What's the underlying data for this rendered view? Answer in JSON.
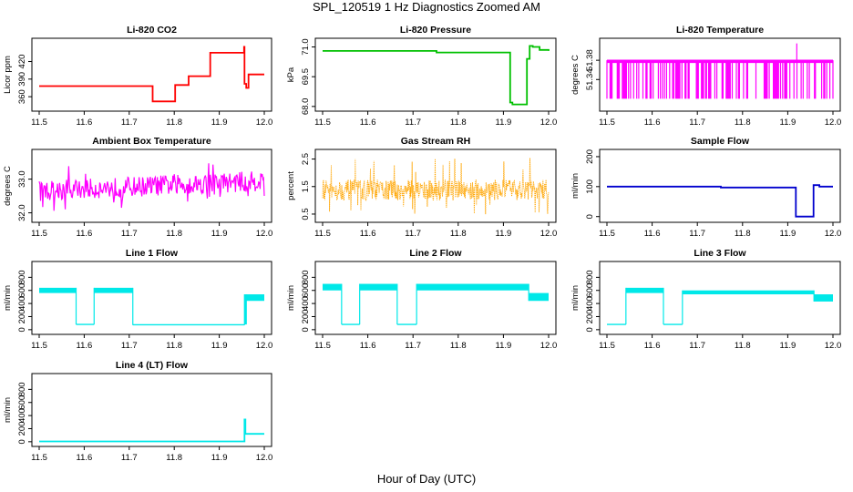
{
  "figure": {
    "title": "SPL_120519  1 Hz Diagnostics Zoomed AM",
    "xlabel": "Hour of Day (UTC)"
  },
  "chart_data": [
    {
      "type": "line",
      "title": "Li-820 CO2",
      "ylabel": "Licor ppm",
      "color": "#ff0000",
      "xlim": [
        11.5,
        12.0
      ],
      "ylim": [
        340,
        455
      ],
      "xticks": [
        11.5,
        11.6,
        11.7,
        11.8,
        11.9,
        12.0
      ],
      "yticks": [
        360,
        390,
        420
      ],
      "ytick_labels": [
        "360",
        "390",
        "420"
      ],
      "points": [
        [
          11.5,
          378
        ],
        [
          11.75,
          378
        ],
        [
          11.752,
          352
        ],
        [
          11.8,
          352
        ],
        [
          11.802,
          380
        ],
        [
          11.83,
          380
        ],
        [
          11.832,
          395
        ],
        [
          11.878,
          395
        ],
        [
          11.88,
          435
        ],
        [
          11.95,
          435
        ],
        [
          11.955,
          445
        ],
        [
          11.956,
          382
        ],
        [
          11.96,
          375
        ],
        [
          11.965,
          398
        ],
        [
          12.0,
          398
        ]
      ]
    },
    {
      "type": "line",
      "title": "Li-820 Pressure",
      "ylabel": "kPa",
      "color": "#00c000",
      "xlim": [
        11.5,
        12.0
      ],
      "ylim": [
        67.9,
        71.3
      ],
      "xticks": [
        11.5,
        11.6,
        11.7,
        11.8,
        11.9,
        12.0
      ],
      "yticks": [
        68.0,
        69.5,
        71.0
      ],
      "ytick_labels": [
        "68.0",
        "69.5",
        "71.0"
      ],
      "points": [
        [
          11.5,
          70.8
        ],
        [
          11.75,
          70.8
        ],
        [
          11.752,
          70.72
        ],
        [
          11.91,
          70.72
        ],
        [
          11.915,
          68.2
        ],
        [
          11.92,
          68.1
        ],
        [
          11.95,
          68.1
        ],
        [
          11.952,
          70.4
        ],
        [
          11.958,
          71.05
        ],
        [
          11.965,
          71.0
        ],
        [
          11.98,
          70.85
        ],
        [
          12.0,
          70.8
        ]
      ]
    },
    {
      "type": "line",
      "title": "Li-820 Temperature",
      "ylabel": "degrees C",
      "color": "#ff00ff",
      "xlim": [
        11.5,
        12.0
      ],
      "ylim": [
        51.28,
        51.42
      ],
      "xticks": [
        11.5,
        11.6,
        11.7,
        11.8,
        11.9,
        12.0
      ],
      "yticks": [
        51.34,
        51.38
      ],
      "ytick_labels": [
        "51.34",
        "51.38"
      ],
      "levels": [
        51.3,
        51.38
      ],
      "spike": [
        11.92,
        51.415
      ]
    },
    {
      "type": "line",
      "title": "Ambient Box Temperature",
      "ylabel": "degrees C",
      "color": "#ff00ff",
      "xlim": [
        11.5,
        12.0
      ],
      "ylim": [
        31.8,
        33.8
      ],
      "xticks": [
        11.5,
        11.6,
        11.7,
        11.8,
        11.9,
        12.0
      ],
      "yticks": [
        32.0,
        33.0
      ],
      "ytick_labels": [
        "32.0",
        "33.0"
      ],
      "trend": [
        [
          11.5,
          32.35,
          32.95
        ],
        [
          12.0,
          32.65,
          33.25
        ]
      ]
    },
    {
      "type": "line",
      "title": "Gas Stream RH",
      "ylabel": "percent",
      "color": "#ffa500",
      "xlim": [
        11.5,
        12.0
      ],
      "ylim": [
        0.3,
        2.75
      ],
      "xticks": [
        11.5,
        11.6,
        11.7,
        11.8,
        11.9,
        12.0
      ],
      "yticks": [
        0.5,
        1.5,
        2.5
      ],
      "ytick_labels": [
        "0.5",
        "1.5",
        "2.5"
      ],
      "band": [
        1.0,
        1.75
      ]
    },
    {
      "type": "line",
      "title": "Sample Flow",
      "ylabel": "ml/min",
      "color": "#0000cd",
      "xlim": [
        11.5,
        12.0
      ],
      "ylim": [
        -10,
        215
      ],
      "xticks": [
        11.5,
        11.6,
        11.7,
        11.8,
        11.9,
        12.0
      ],
      "yticks": [
        0,
        100,
        200
      ],
      "ytick_labels": [
        "0",
        "100",
        "200"
      ],
      "points": [
        [
          11.5,
          100
        ],
        [
          11.75,
          100
        ],
        [
          11.752,
          97
        ],
        [
          11.915,
          97
        ],
        [
          11.918,
          0
        ],
        [
          11.955,
          0
        ],
        [
          11.957,
          105
        ],
        [
          11.97,
          100
        ],
        [
          12.0,
          100
        ]
      ]
    },
    {
      "type": "line",
      "title": "Line 1 Flow",
      "ylabel": "ml/min",
      "color": "#00e8e8",
      "xlim": [
        11.5,
        12.0
      ],
      "ylim": [
        -30,
        1000
      ],
      "xticks": [
        11.5,
        11.6,
        11.7,
        11.8,
        11.9,
        12.0
      ],
      "yticks": [
        0,
        200,
        400,
        600,
        800
      ],
      "ytick_labels": [
        "0",
        "200",
        "400",
        "600",
        "800"
      ],
      "segments": [
        {
          "x": [
            11.5,
            11.582
          ],
          "lo": 560,
          "hi": 640
        },
        {
          "x": [
            11.582,
            11.622
          ],
          "lo": 80,
          "hi": 80
        },
        {
          "x": [
            11.622,
            11.708
          ],
          "lo": 560,
          "hi": 640
        },
        {
          "x": [
            11.708,
            11.956
          ],
          "lo": 70,
          "hi": 75
        },
        {
          "x": [
            11.956,
            11.96
          ],
          "lo": 80,
          "hi": 540
        },
        {
          "x": [
            11.96,
            12.0
          ],
          "lo": 440,
          "hi": 540
        }
      ]
    },
    {
      "type": "line",
      "title": "Line 2 Flow",
      "ylabel": "ml/min",
      "color": "#00e8e8",
      "xlim": [
        11.5,
        12.0
      ],
      "ylim": [
        -30,
        1000
      ],
      "xticks": [
        11.5,
        11.6,
        11.7,
        11.8,
        11.9,
        12.0
      ],
      "yticks": [
        0,
        200,
        400,
        600,
        800
      ],
      "ytick_labels": [
        "0",
        "200",
        "400",
        "600",
        "800"
      ],
      "segments": [
        {
          "x": [
            11.5,
            11.542
          ],
          "lo": 600,
          "hi": 700
        },
        {
          "x": [
            11.542,
            11.582
          ],
          "lo": 80,
          "hi": 80
        },
        {
          "x": [
            11.582,
            11.665
          ],
          "lo": 600,
          "hi": 700
        },
        {
          "x": [
            11.665,
            11.708
          ],
          "lo": 80,
          "hi": 80
        },
        {
          "x": [
            11.708,
            11.956
          ],
          "lo": 600,
          "hi": 700
        },
        {
          "x": [
            11.956,
            12.0
          ],
          "lo": 440,
          "hi": 560
        }
      ]
    },
    {
      "type": "line",
      "title": "Line 3 Flow",
      "ylabel": "ml/min",
      "color": "#00e8e8",
      "xlim": [
        11.5,
        12.0
      ],
      "ylim": [
        -30,
        1000
      ],
      "xticks": [
        11.5,
        11.6,
        11.7,
        11.8,
        11.9,
        12.0
      ],
      "yticks": [
        0,
        200,
        400,
        600,
        800
      ],
      "ytick_labels": [
        "0",
        "200",
        "400",
        "600",
        "800"
      ],
      "segments": [
        {
          "x": [
            11.5,
            11.542
          ],
          "lo": 80,
          "hi": 80
        },
        {
          "x": [
            11.542,
            11.625
          ],
          "lo": 560,
          "hi": 640
        },
        {
          "x": [
            11.625,
            11.667
          ],
          "lo": 80,
          "hi": 80
        },
        {
          "x": [
            11.667,
            11.958
          ],
          "lo": 540,
          "hi": 600
        },
        {
          "x": [
            11.958,
            12.0
          ],
          "lo": 430,
          "hi": 540
        }
      ]
    },
    {
      "type": "line",
      "title": "Line 4 (LT) Flow",
      "ylabel": "ml/min",
      "color": "#00e8e8",
      "xlim": [
        11.5,
        12.0
      ],
      "ylim": [
        -30,
        1000
      ],
      "xticks": [
        11.5,
        11.6,
        11.7,
        11.8,
        11.9,
        12.0
      ],
      "yticks": [
        0,
        200,
        400,
        600,
        800
      ],
      "ytick_labels": [
        "0",
        "200",
        "400",
        "600",
        "800"
      ],
      "points": [
        [
          11.5,
          5
        ],
        [
          11.955,
          5
        ],
        [
          11.956,
          340
        ],
        [
          11.958,
          120
        ],
        [
          12.0,
          120
        ]
      ]
    }
  ]
}
